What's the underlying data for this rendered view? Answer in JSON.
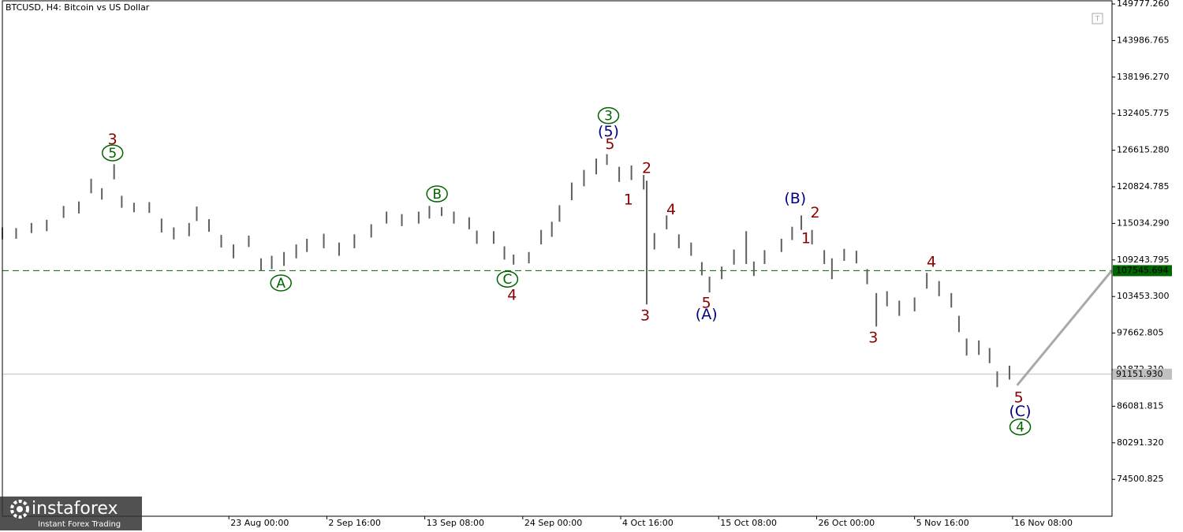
{
  "chart_data": {
    "type": "range-bar",
    "title": "BTCUSD, H4:  Bitcoin vs US Dollar",
    "xlim": [
      0,
      725
    ],
    "xticks": [
      {
        "value": 148,
        "label": "23 Aug 00:00"
      },
      {
        "value": 212,
        "label": "2 Sep 16:00"
      },
      {
        "value": 276,
        "label": "13 Sep 08:00"
      },
      {
        "value": 340,
        "label": "24 Sep 00:00"
      },
      {
        "value": 404,
        "label": "4 Oct 16:00"
      },
      {
        "value": 468,
        "label": "15 Oct 08:00"
      },
      {
        "value": 532,
        "label": "26 Oct 00:00"
      },
      {
        "value": 596,
        "label": "5 Nov 16:00"
      },
      {
        "value": 660,
        "label": "16 Nov 08:00"
      }
    ],
    "ylim": [
      68660,
      150280
    ],
    "yticks": [
      {
        "value": 149777.26,
        "label": "149777.260"
      },
      {
        "value": 143986.765,
        "label": "143986.765"
      },
      {
        "value": 138196.27,
        "label": "138196.270"
      },
      {
        "value": 132405.775,
        "label": "132405.775"
      },
      {
        "value": 126615.28,
        "label": "126615.280"
      },
      {
        "value": 120824.785,
        "label": "120824.785"
      },
      {
        "value": 115034.29,
        "label": "115034.290"
      },
      {
        "value": 109243.795,
        "label": "109243.795"
      },
      {
        "value": 103453.3,
        "label": "103453.300"
      },
      {
        "value": 97662.805,
        "label": "97662.805"
      },
      {
        "value": 91872.31,
        "label": "91872.310"
      },
      {
        "value": 86081.815,
        "label": "86081.815"
      },
      {
        "value": 80291.32,
        "label": "80291.320"
      },
      {
        "value": 74500.825,
        "label": "74500.825"
      }
    ],
    "series": [
      {
        "color": "#606060",
        "x": [
          0,
          9,
          19,
          29,
          40,
          50,
          58,
          65,
          73,
          78,
          86,
          96,
          104,
          112,
          122,
          127,
          135,
          143,
          151,
          161,
          169,
          176,
          184,
          192,
          199,
          210,
          220,
          230,
          241,
          251,
          261,
          272,
          279,
          287,
          295,
          305,
          310,
          321,
          328,
          334,
          344,
          352,
          359,
          364,
          372,
          380,
          388,
          395,
          403,
          411,
          419,
          421,
          426,
          434,
          442,
          450,
          457,
          462,
          470,
          478,
          486,
          491,
          498,
          509,
          516,
          522,
          529,
          537,
          542,
          550,
          558,
          565,
          571,
          578,
          586,
          596,
          604,
          612,
          620,
          625,
          630,
          638,
          645,
          650,
          658
        ],
        "high": [
          114400,
          114300,
          115100,
          115600,
          117800,
          118500,
          122100,
          120600,
          124400,
          119400,
          118300,
          118400,
          115800,
          114400,
          115100,
          117700,
          115700,
          113200,
          111700,
          113100,
          109500,
          109900,
          110500,
          111700,
          112600,
          113400,
          112000,
          113300,
          114900,
          116900,
          116500,
          116900,
          117800,
          117600,
          116900,
          116000,
          113900,
          113800,
          111400,
          110100,
          110500,
          114000,
          115300,
          117900,
          121500,
          123500,
          125300,
          126000,
          124000,
          124200,
          122700,
          121800,
          113500,
          116300,
          113300,
          112000,
          108900,
          106600,
          108200,
          110900,
          113800,
          109000,
          110800,
          112600,
          114500,
          116300,
          114000,
          110800,
          109500,
          111000,
          110700,
          107800,
          104000,
          104300,
          102800,
          103300,
          107200,
          105900,
          104000,
          100400,
          96800,
          96500,
          95300,
          91600,
          92500
        ],
        "low": [
          112500,
          112600,
          113500,
          113800,
          115900,
          116600,
          119800,
          118800,
          122000,
          117500,
          116800,
          116700,
          113600,
          112500,
          113000,
          115400,
          113700,
          111200,
          109500,
          111300,
          107500,
          107800,
          108300,
          109500,
          110500,
          111100,
          109900,
          111100,
          112800,
          115000,
          114600,
          115000,
          115800,
          116200,
          115000,
          114100,
          111800,
          111800,
          109300,
          108500,
          108700,
          111700,
          112900,
          115300,
          118700,
          120900,
          122800,
          124300,
          121600,
          121900,
          120400,
          102200,
          110900,
          114100,
          111100,
          109900,
          106800,
          104100,
          106200,
          108500,
          108600,
          106700,
          108600,
          110500,
          112400,
          114000,
          111700,
          108600,
          106200,
          109100,
          108700,
          105400,
          98700,
          101900,
          100400,
          101100,
          104700,
          103500,
          101700,
          97800,
          94100,
          94200,
          92900,
          89100,
          90300
        ]
      }
    ],
    "hlines": [
      {
        "value": 107545.694,
        "label": "107545.694",
        "color": "#006400",
        "dashed": true
      },
      {
        "value": 91151.93,
        "label": "91151.930",
        "color": "#c0c0c0",
        "dashed": false
      }
    ],
    "projection": {
      "color": "#a9a9a9",
      "x": [
        663,
        725
      ],
      "values": [
        89400,
        107600
      ]
    },
    "annotations": [
      {
        "text": "3",
        "x": 72,
        "y": 128400,
        "color": "#8b0000",
        "circled": false
      },
      {
        "text": "5",
        "x": 72,
        "y": 126200,
        "color": "#006400",
        "circled": true
      },
      {
        "text": "A",
        "x": 182,
        "y": 105600,
        "color": "#006400",
        "circled": true
      },
      {
        "text": "B",
        "x": 284,
        "y": 119700,
        "color": "#006400",
        "circled": true
      },
      {
        "text": "C",
        "x": 330,
        "y": 106200,
        "color": "#006400",
        "circled": true
      },
      {
        "text": "4",
        "x": 333,
        "y": 103700,
        "color": "#8b0000",
        "circled": false
      },
      {
        "text": "3",
        "x": 396,
        "y": 132100,
        "color": "#006400",
        "circled": true
      },
      {
        "text": "(5)",
        "x": 396,
        "y": 129600,
        "color": "#000080",
        "circled": false
      },
      {
        "text": "5",
        "x": 397,
        "y": 127600,
        "color": "#8b0000",
        "circled": false
      },
      {
        "text": "2",
        "x": 421,
        "y": 123800,
        "color": "#8b0000",
        "circled": false
      },
      {
        "text": "1",
        "x": 409,
        "y": 118800,
        "color": "#8b0000",
        "circled": false
      },
      {
        "text": "3",
        "x": 420,
        "y": 100500,
        "color": "#8b0000",
        "circled": false
      },
      {
        "text": "4",
        "x": 437,
        "y": 117300,
        "color": "#8b0000",
        "circled": false
      },
      {
        "text": "5",
        "x": 460,
        "y": 102500,
        "color": "#8b0000",
        "circled": false
      },
      {
        "text": "(A)",
        "x": 460,
        "y": 100700,
        "color": "#000080",
        "circled": false
      },
      {
        "text": "(B)",
        "x": 518,
        "y": 119000,
        "color": "#000080",
        "circled": false
      },
      {
        "text": "2",
        "x": 531,
        "y": 116800,
        "color": "#8b0000",
        "circled": false
      },
      {
        "text": "1",
        "x": 525,
        "y": 112700,
        "color": "#8b0000",
        "circled": false
      },
      {
        "text": "3",
        "x": 569,
        "y": 97000,
        "color": "#8b0000",
        "circled": false
      },
      {
        "text": "4",
        "x": 607,
        "y": 109000,
        "color": "#8b0000",
        "circled": false
      },
      {
        "text": "5",
        "x": 664,
        "y": 87500,
        "color": "#8b0000",
        "circled": false
      },
      {
        "text": "(C)",
        "x": 665,
        "y": 85300,
        "color": "#000080",
        "circled": false
      },
      {
        "text": "4",
        "x": 665,
        "y": 82800,
        "color": "#006400",
        "circled": true
      }
    ]
  },
  "watermark": {
    "brand": "instaforex",
    "tagline": "Instant Forex Trading"
  }
}
